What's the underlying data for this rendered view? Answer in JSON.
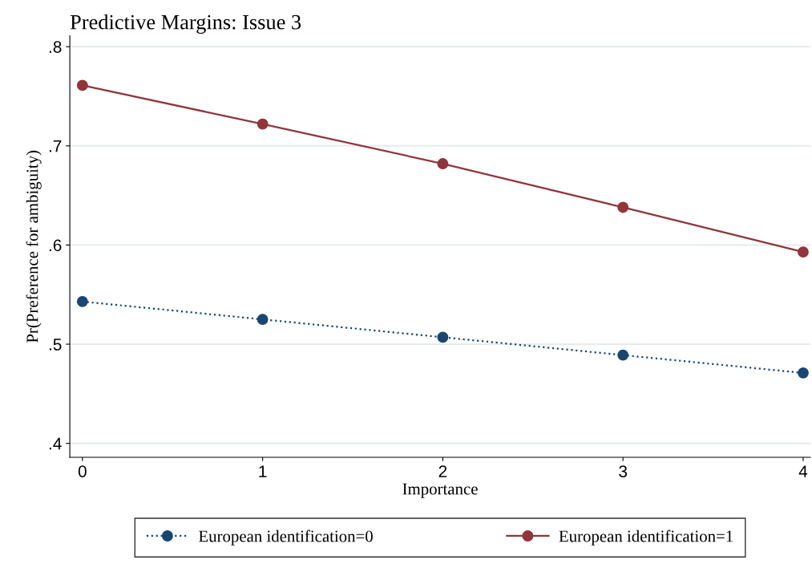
{
  "chart_data": {
    "type": "line",
    "title": "Predictive Margins: Issue 3",
    "xlabel": "Importance",
    "ylabel": "Pr(Preference for ambiguity)",
    "x": [
      0,
      1,
      2,
      3,
      4
    ],
    "series": [
      {
        "name": "European identification=0",
        "color": "#1a476f",
        "values": [
          0.543,
          0.525,
          0.507,
          0.489,
          0.471
        ],
        "line_style": "dotted"
      },
      {
        "name": "European identification=1",
        "color": "#90353b",
        "values": [
          0.761,
          0.722,
          0.682,
          0.638,
          0.593
        ],
        "line_style": "solid"
      }
    ],
    "xlim": [
      -0.07,
      4.04
    ],
    "xticks": [
      0,
      1,
      2,
      3,
      4
    ],
    "ylim": [
      0.386,
      0.811
    ],
    "yticks": [
      {
        "value": 0.4,
        "label": ".4"
      },
      {
        "value": 0.5,
        "label": ".5"
      },
      {
        "value": 0.6,
        "label": ".6"
      },
      {
        "value": 0.7,
        "label": ".7"
      },
      {
        "value": 0.8,
        "label": ".8"
      }
    ],
    "grid": "y",
    "legend": "bottom",
    "marker": "circle"
  }
}
